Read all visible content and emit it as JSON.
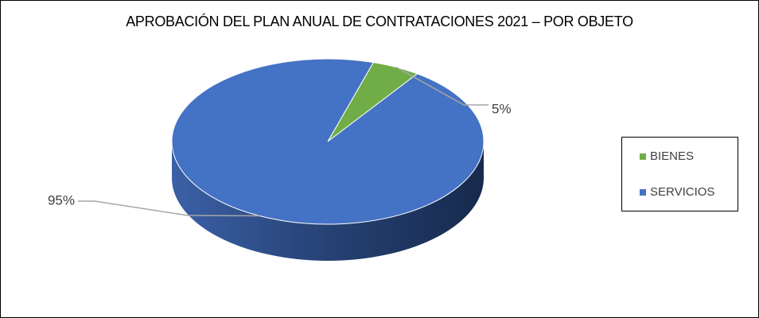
{
  "chart_data": {
    "type": "pie",
    "title": "APROBACIÓN DEL PLAN ANUAL DE CONTRATACIONES 2021 – POR OBJETO",
    "categories": [
      "BIENES",
      "SERVICIOS"
    ],
    "values": [
      5,
      95
    ],
    "data_labels": [
      "5%",
      "95%"
    ],
    "colors": [
      "#70AD47",
      "#4472C4"
    ],
    "legend_position": "right",
    "style": "3d"
  }
}
